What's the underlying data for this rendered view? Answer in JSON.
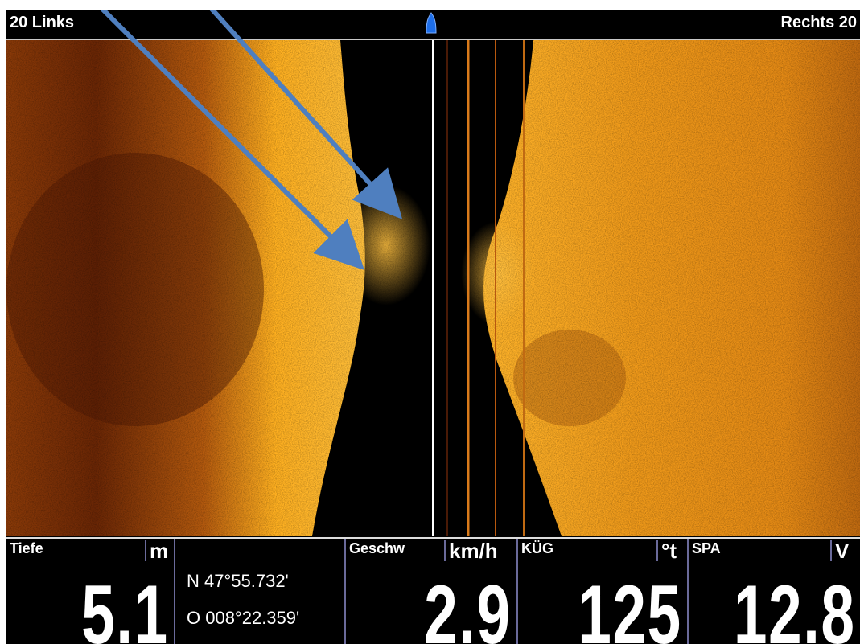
{
  "header": {
    "left_range": "20 Links",
    "right_range": "Rechts 20",
    "boat_icon": "boat-marker-icon"
  },
  "colors": {
    "sonar_bright": "#ffb21f",
    "sonar_mid": "#d9750f",
    "sonar_dark": "#5a1e05",
    "arrow": "#4f7fbf",
    "boat": "#1e6ee8"
  },
  "readouts": {
    "depth": {
      "label": "Tiefe",
      "unit": "m",
      "value": "5.1"
    },
    "position": {
      "lat": "N 47°55.732'",
      "lon": "O 008°22.359'"
    },
    "speed": {
      "label": "Geschw",
      "unit": "km/h",
      "value": "2.9"
    },
    "course": {
      "label": "KÜG",
      "unit": "°t",
      "value": "125"
    },
    "voltage": {
      "label": "SPA",
      "unit": "V",
      "value": "12.8"
    }
  },
  "annotations": {
    "arrow_count": 2,
    "arrow_icon": "arrow-annotation-icon"
  }
}
